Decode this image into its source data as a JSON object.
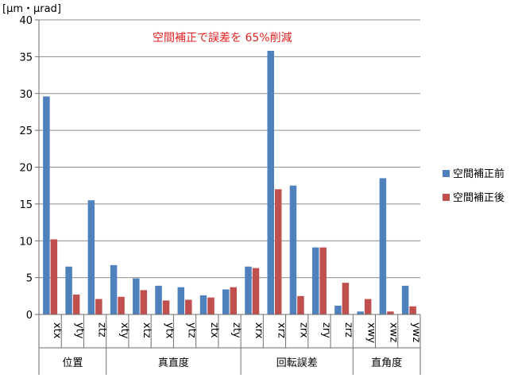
{
  "chart_data": {
    "type": "bar",
    "annotation": "空間補正で誤差を 65%削減",
    "ylabel": "[μm・μrad]",
    "ylim": [
      0,
      40
    ],
    "yticks": [
      0,
      5,
      10,
      15,
      20,
      25,
      30,
      35,
      40
    ],
    "grid": true,
    "legend_position": "right",
    "categories": [
      "xtx",
      "yty",
      "ztz",
      "xty",
      "xtz",
      "ytx",
      "ytz",
      "ztx",
      "zty",
      "xrx",
      "xrz",
      "zrx",
      "zry",
      "zrz",
      "xwy",
      "xwz",
      "ywz"
    ],
    "groups": [
      {
        "label": "位置",
        "categories": [
          "xtx",
          "yty",
          "ztz"
        ]
      },
      {
        "label": "真直度",
        "categories": [
          "xty",
          "xtz",
          "ytx",
          "ytz",
          "ztx",
          "zty"
        ]
      },
      {
        "label": "回転誤差",
        "categories": [
          "xrx",
          "xrz",
          "zrx",
          "zry",
          "zrz"
        ]
      },
      {
        "label": "直角度",
        "categories": [
          "xwy",
          "xwz",
          "ywz"
        ]
      }
    ],
    "series": [
      {
        "name": "空間補正前",
        "color": "#4f81bd",
        "values": [
          29.6,
          6.5,
          15.5,
          6.7,
          4.9,
          3.9,
          3.7,
          2.6,
          3.4,
          6.5,
          35.8,
          17.5,
          9.1,
          1.2,
          0.4,
          18.5,
          3.9
        ]
      },
      {
        "name": "空間補正後",
        "color": "#c0504d",
        "values": [
          10.2,
          2.7,
          2.1,
          2.4,
          3.3,
          1.9,
          2.0,
          2.3,
          3.7,
          6.3,
          17.0,
          2.5,
          9.1,
          4.3,
          2.1,
          0.4,
          1.1
        ]
      }
    ],
    "colors": {
      "annotation": "#e02020",
      "grid": "#8c8c8c",
      "axis": "#6e6e6e"
    }
  }
}
